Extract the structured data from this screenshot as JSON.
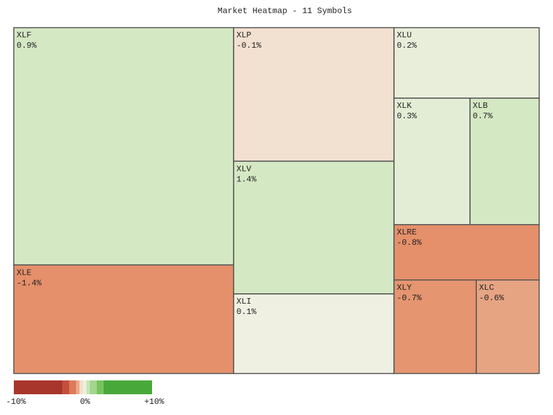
{
  "chart_data": {
    "type": "treemap",
    "title": "Market Heatmap - 11 Symbols",
    "categories": [
      "XLF",
      "XLE",
      "XLP",
      "XLV",
      "XLI",
      "XLU",
      "XLK",
      "XLB",
      "XLRE",
      "XLY",
      "XLC"
    ],
    "values": [
      0.9,
      -1.4,
      -0.1,
      1.4,
      0.1,
      0.2,
      0.3,
      0.7,
      -0.8,
      -0.7,
      -0.6
    ],
    "value_labels": [
      "0.9%",
      "-1.4%",
      "-0.1%",
      "1.4%",
      "0.1%",
      "0.2%",
      "0.3%",
      "0.7%",
      "-0.8%",
      "-0.7%",
      "-0.6%"
    ],
    "weights": [
      109.1,
      49.9,
      44.8,
      44.5,
      26.7,
      21.4,
      20.1,
      18.3,
      16.8,
      16.1,
      12.3
    ],
    "colors": [
      "#d5e8c4",
      "#e5906b",
      "#f2e0d0",
      "#d5e8c4",
      "#eff0e2",
      "#e9eedb",
      "#e3edd6",
      "#d5e8c4",
      "#e5906b",
      "#e5956f",
      "#e6a483"
    ],
    "colorbar": {
      "bounds": [
        -10,
        -3,
        -2,
        -1,
        -0.5,
        0,
        0.5,
        1,
        2,
        3,
        10
      ],
      "colors": [
        "#a8362c",
        "#c4503c",
        "#dc7a5a",
        "#eca98a",
        "#f6dccc",
        "#e8f2de",
        "#c9e4b6",
        "#a3d58c",
        "#78c25e",
        "#48a83a"
      ],
      "lim": [
        -10,
        10
      ],
      "ticks": [
        {
          "value": -10,
          "label": "-10%"
        },
        {
          "value": 0,
          "label": "0%"
        },
        {
          "value": 10,
          "label": "+10%"
        }
      ]
    }
  }
}
